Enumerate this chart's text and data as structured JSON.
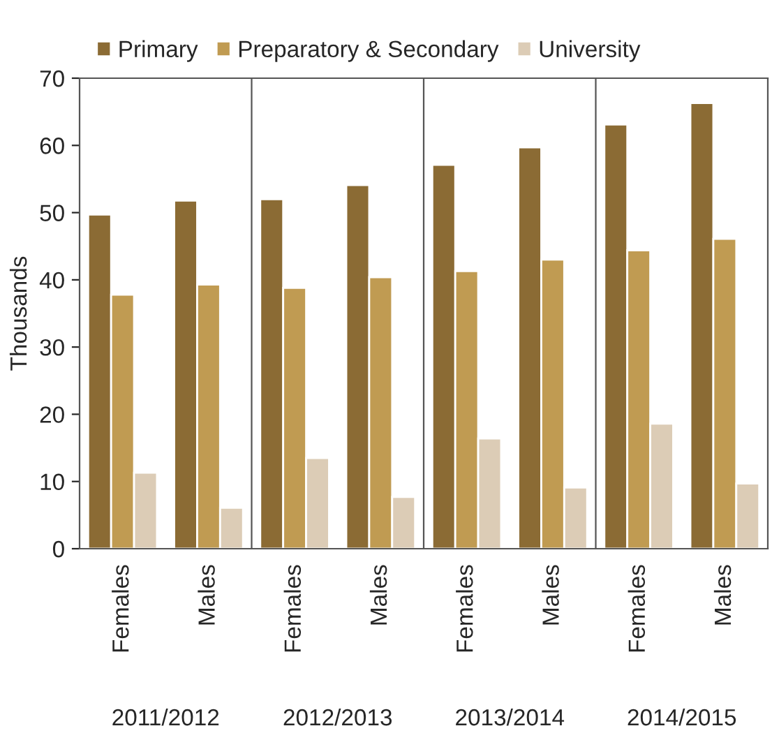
{
  "chart_data": {
    "type": "bar",
    "ylabel": "Thousands",
    "categories": [
      "Females",
      "Males",
      "Females",
      "Males",
      "Females",
      "Males",
      "Females",
      "Males"
    ],
    "series": [
      {
        "name": "Primary",
        "color": "#8b6b34",
        "values": [
          49.7,
          51.8,
          52.0,
          54.1,
          57.1,
          59.7,
          63.1,
          66.3
        ]
      },
      {
        "name": "Preparatory & Secondary",
        "color": "#c09b52",
        "values": [
          37.8,
          39.3,
          38.8,
          40.4,
          41.3,
          43.0,
          44.4,
          46.1
        ]
      },
      {
        "name": "University",
        "color": "#dcccb6",
        "values": [
          11.3,
          6.1,
          13.5,
          7.7,
          16.4,
          9.1,
          18.6,
          9.7
        ]
      }
    ],
    "annotations": [
      "2011/2012",
      "2012/2013",
      "2013/2014",
      "2014/2015"
    ],
    "ylim": [
      0,
      70
    ],
    "yticks": [
      0,
      10,
      20,
      30,
      40,
      50,
      60,
      70
    ],
    "grid": false,
    "legend": "top"
  }
}
